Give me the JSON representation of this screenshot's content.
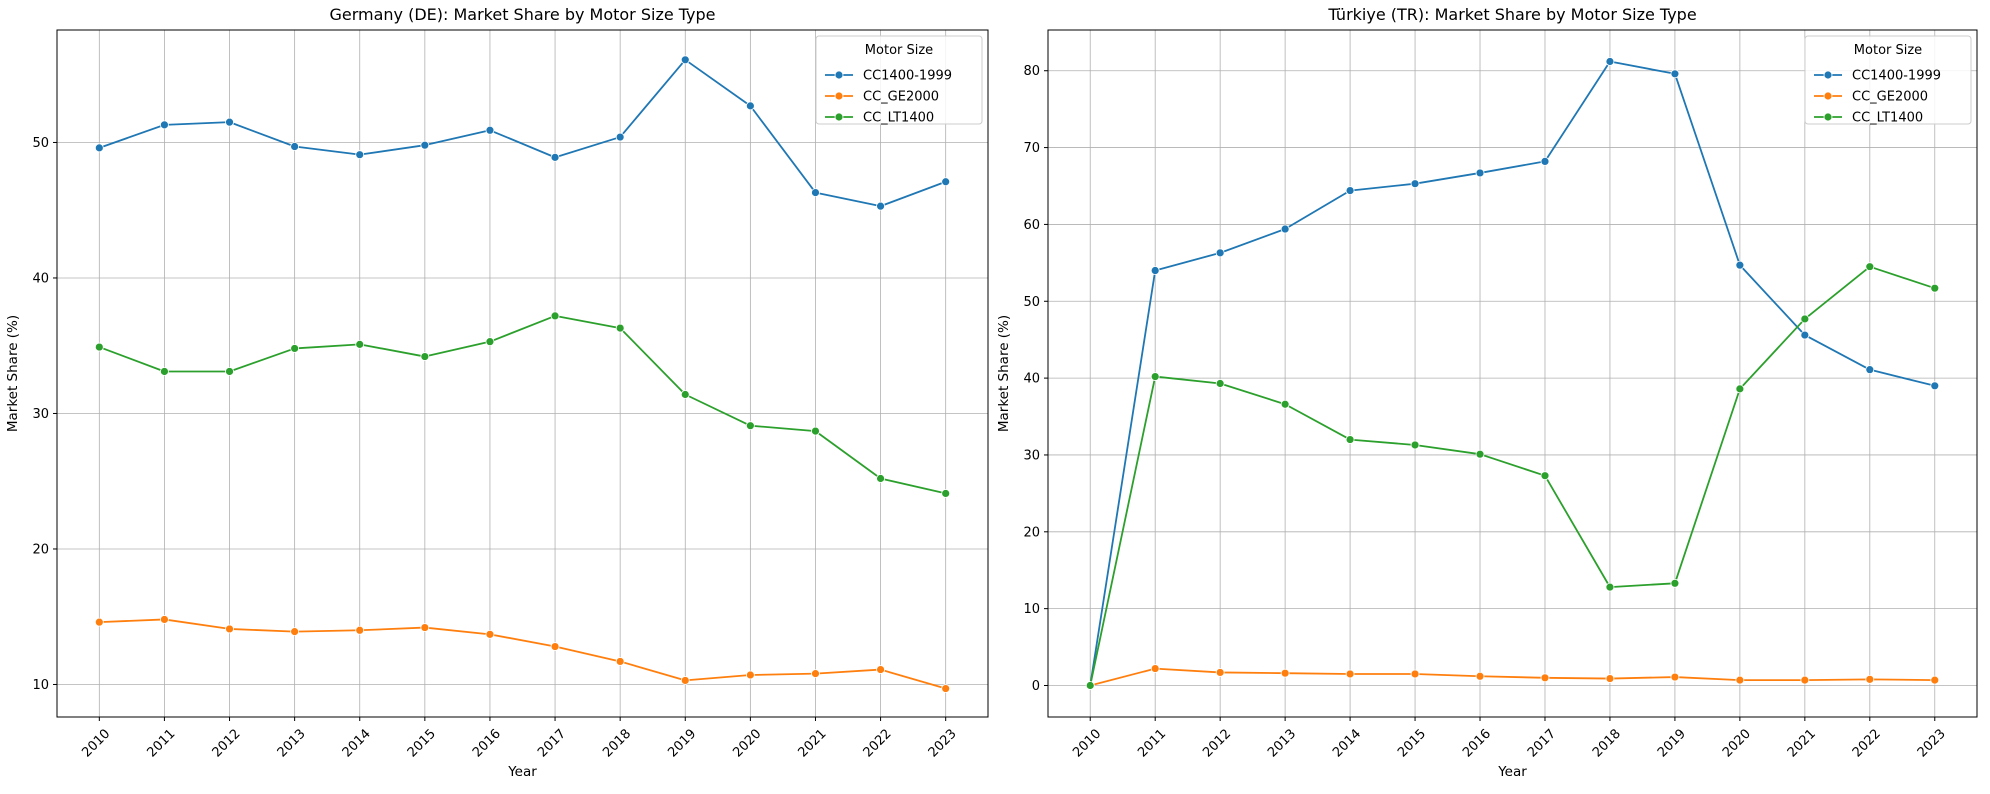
{
  "chart_data": [
    {
      "type": "line",
      "title": "Germany (DE): Market Share by Motor Size Type",
      "xlabel": "Year",
      "ylabel": "Market Share (%)",
      "x": [
        2010,
        2011,
        2012,
        2013,
        2014,
        2015,
        2016,
        2017,
        2018,
        2019,
        2020,
        2021,
        2022,
        2023
      ],
      "xticks": [
        "2010",
        "2011",
        "2012",
        "2013",
        "2014",
        "2015",
        "2016",
        "2017",
        "2018",
        "2019",
        "2020",
        "2021",
        "2022",
        "2023"
      ],
      "yticks": [
        10,
        20,
        30,
        40,
        50
      ],
      "ylim": [
        7.6,
        58.3
      ],
      "grid": true,
      "legend_title": "Motor Size",
      "legend_position": "top-right",
      "series": [
        {
          "name": "CC1400-1999",
          "color": "#1f77b4",
          "values": [
            49.6,
            51.3,
            51.5,
            49.7,
            49.1,
            49.8,
            50.9,
            48.9,
            50.4,
            56.1,
            52.7,
            46.3,
            45.3,
            47.1
          ]
        },
        {
          "name": "CC_GE2000",
          "color": "#ff7f0e",
          "values": [
            14.6,
            14.8,
            14.1,
            13.9,
            14.0,
            14.2,
            13.7,
            12.8,
            11.7,
            10.3,
            10.7,
            10.8,
            11.1,
            9.7
          ]
        },
        {
          "name": "CC_LT1400",
          "color": "#2ca02c",
          "values": [
            34.9,
            33.1,
            33.1,
            34.8,
            35.1,
            34.2,
            35.3,
            37.2,
            36.3,
            31.4,
            29.1,
            28.7,
            25.2,
            24.1
          ]
        }
      ]
    },
    {
      "type": "line",
      "title": "Türkiye (TR): Market Share by Motor Size Type",
      "xlabel": "Year",
      "ylabel": "Market Share (%)",
      "x": [
        2010,
        2011,
        2012,
        2013,
        2014,
        2015,
        2016,
        2017,
        2018,
        2019,
        2020,
        2021,
        2022,
        2023
      ],
      "xticks": [
        "2010",
        "2011",
        "2012",
        "2013",
        "2014",
        "2015",
        "2016",
        "2017",
        "2018",
        "2019",
        "2020",
        "2021",
        "2022",
        "2023"
      ],
      "yticks": [
        0,
        10,
        20,
        30,
        40,
        50,
        60,
        70,
        80
      ],
      "ylim": [
        -4.1,
        85.3
      ],
      "grid": true,
      "legend_title": "Motor Size",
      "legend_position": "top-right",
      "series": [
        {
          "name": "CC1400-1999",
          "color": "#1f77b4",
          "values": [
            0.0,
            54.0,
            56.3,
            59.4,
            64.4,
            65.3,
            66.7,
            68.2,
            81.2,
            79.6,
            54.7,
            45.6,
            41.1,
            39.0
          ]
        },
        {
          "name": "CC_GE2000",
          "color": "#ff7f0e",
          "values": [
            0.0,
            2.2,
            1.7,
            1.6,
            1.5,
            1.5,
            1.2,
            1.0,
            0.9,
            1.1,
            0.7,
            0.7,
            0.8,
            0.7
          ]
        },
        {
          "name": "CC_LT1400",
          "color": "#2ca02c",
          "values": [
            0.0,
            40.2,
            39.3,
            36.6,
            32.0,
            31.3,
            30.1,
            27.3,
            12.8,
            13.3,
            38.6,
            47.7,
            54.5,
            51.7
          ]
        }
      ]
    }
  ]
}
